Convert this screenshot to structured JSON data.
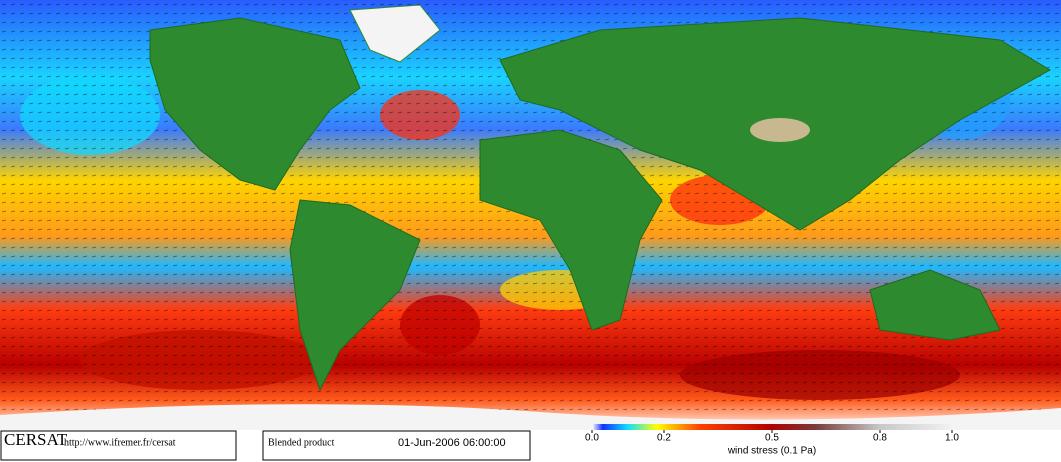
{
  "footer": {
    "logo": "CERSAT",
    "url": "http://www.ifremer.fr/cersat",
    "product": "Blended product",
    "date": "01-Jun-2006 06:00:00"
  },
  "colorbar": {
    "range": [
      0,
      1
    ],
    "ticks": [
      {
        "value": 0,
        "label": "0.0"
      },
      0.2,
      0.5,
      0.8,
      {
        "value": 1,
        "label": "1.0"
      }
    ],
    "label": "wind stress (0.1 Pa)"
  }
}
